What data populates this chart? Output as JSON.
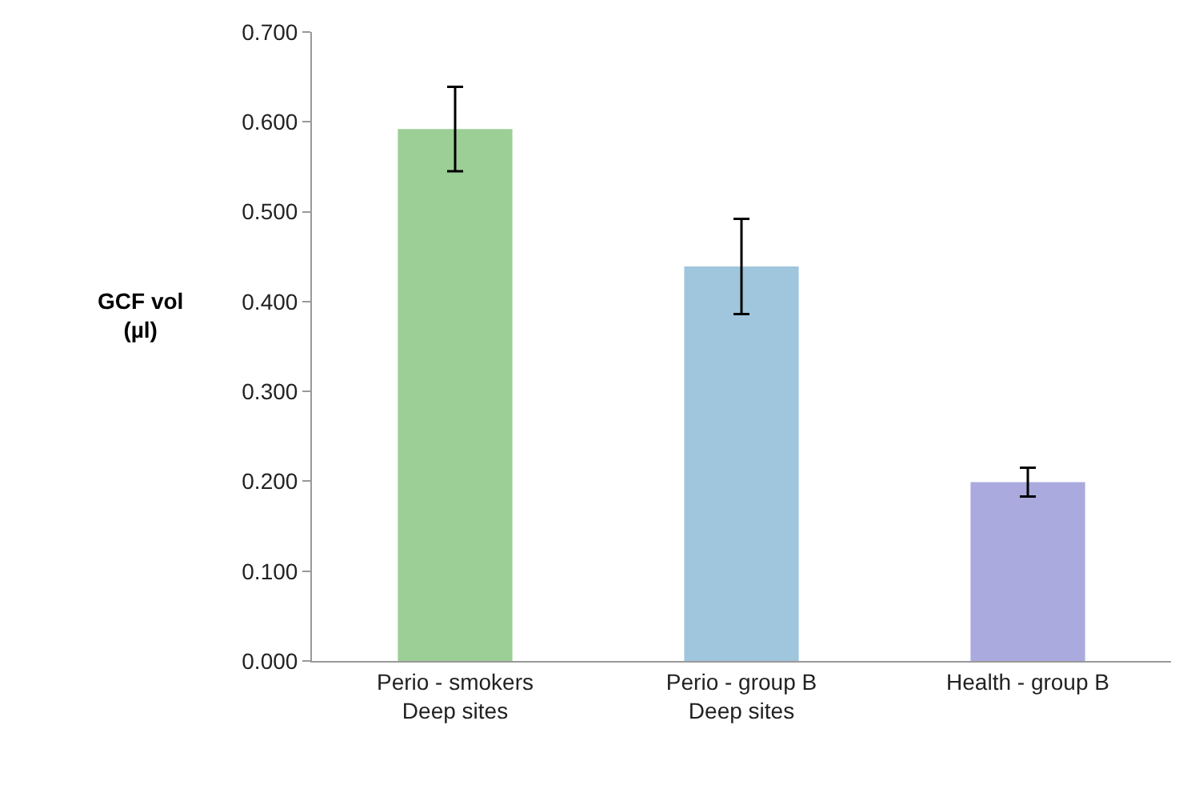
{
  "chart_data": {
    "type": "bar",
    "ylabel": "GCF vol\n(µl)",
    "categories": [
      "Perio - smokers\nDeep sites",
      "Perio - group B\nDeep sites",
      "Health - group B"
    ],
    "values": [
      0.592,
      0.439,
      0.199
    ],
    "errors": [
      0.047,
      0.053,
      0.016
    ],
    "colors": [
      "#9ccf96",
      "#9fc6dc",
      "#aaaade"
    ],
    "ylim": [
      0,
      0.7
    ],
    "yticks": [
      {
        "value": 0,
        "label": "0.000"
      },
      {
        "value": 0.1,
        "label": "0.100"
      },
      {
        "value": 0.2,
        "label": "0.200"
      },
      {
        "value": 0.3,
        "label": "0.300"
      },
      {
        "value": 0.4,
        "label": "0.400"
      },
      {
        "value": 0.5,
        "label": "0.500"
      },
      {
        "value": 0.6,
        "label": "0.600"
      },
      {
        "value": 0.7,
        "label": "0.700"
      }
    ],
    "grid": false
  }
}
